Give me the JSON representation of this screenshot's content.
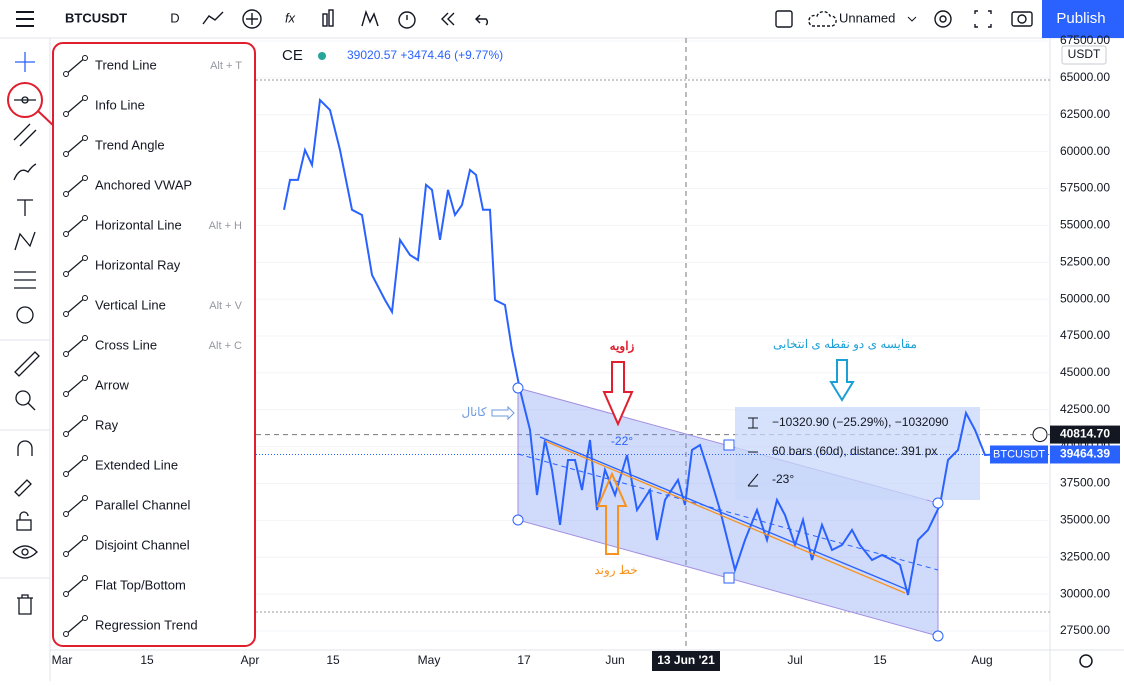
{
  "toolbar": {
    "symbol": "BTCUSDT",
    "interval": "D",
    "layout_name": "Unnamed",
    "publish": "Publish"
  },
  "drawing_menu": {
    "items": [
      {
        "label": "Trend Line",
        "shortcut": "Alt + T"
      },
      {
        "label": "Info Line"
      },
      {
        "label": "Trend Angle"
      },
      {
        "label": "Anchored VWAP"
      },
      {
        "label": "Horizontal Line",
        "shortcut": "Alt + H"
      },
      {
        "label": "Horizontal Ray"
      },
      {
        "label": "Vertical Line",
        "shortcut": "Alt + V"
      },
      {
        "label": "Cross Line",
        "shortcut": "Alt + C"
      },
      {
        "label": "Arrow"
      },
      {
        "label": "Ray"
      },
      {
        "label": "Extended Line"
      },
      {
        "label": "Parallel Channel"
      },
      {
        "label": "Disjoint Channel"
      },
      {
        "label": "Flat Top/Bottom"
      },
      {
        "label": "Regression Trend"
      }
    ]
  },
  "chart_data": {
    "type": "line",
    "symbol_label": "CE",
    "price_info": "39020.57 +3474.46 (+9.77%)",
    "currency": "USDT",
    "series": [
      {
        "name": "BTCUSDT",
        "color": "#2962ff",
        "values": [
          56050,
          58080,
          58080,
          60110,
          59100,
          63500,
          62820,
          60110,
          56050,
          55700,
          51640,
          49940,
          49130,
          54010,
          52990,
          52650,
          57740,
          57400,
          54010,
          57400,
          55700,
          56380,
          58760,
          58420,
          56050,
          56050,
          49940,
          49600,
          46550,
          43840,
          41130,
          36720,
          40450,
          38420,
          34690,
          39090,
          39090,
          37060,
          40450,
          35700,
          38420,
          36720,
          39430,
          35700,
          37060,
          33670,
          36380,
          37740,
          36040,
          39770,
          40110,
          38420,
          35700,
          31640,
          33670,
          35700,
          33670,
          36380,
          35360,
          33330,
          35030,
          32310,
          34690,
          32990,
          33330,
          34350,
          33330,
          32310,
          32650,
          32310,
          31980,
          29940,
          33670,
          34350,
          36040,
          39090,
          39770,
          42280,
          41130,
          39430,
          39464.39
        ]
      }
    ],
    "last_price": 39464.39,
    "crosshair_price": {
      "value": 40814.7,
      "label": "40814.70"
    },
    "crosshair_date": "13 Jun '21",
    "ylim": [
      26210,
      67700
    ],
    "yticks": [
      {
        "value": 27500,
        "label": "27500.00"
      },
      {
        "value": 30000,
        "label": "30000.00"
      },
      {
        "value": 32500,
        "label": "32500.00"
      },
      {
        "value": 35000,
        "label": "35000.00"
      },
      {
        "value": 37500,
        "label": "37500.00"
      },
      {
        "value": 40000,
        "label": "40000.00"
      },
      {
        "value": 42500,
        "label": "42500.00"
      },
      {
        "value": 45000,
        "label": "45000.00"
      },
      {
        "value": 47500,
        "label": "47500.00"
      },
      {
        "value": 50000,
        "label": "50000.00"
      },
      {
        "value": 52500,
        "label": "52500.00"
      },
      {
        "value": 55000,
        "label": "55000.00"
      },
      {
        "value": 57500,
        "label": "57500.00"
      },
      {
        "value": 60000,
        "label": "60000.00"
      },
      {
        "value": 62500,
        "label": "62500.00"
      },
      {
        "value": 65000,
        "label": "65000.00"
      },
      {
        "value": 67500,
        "label": "67500.00"
      }
    ],
    "x_labels": [
      "Mar",
      "15",
      "Apr",
      "15",
      "May",
      "17",
      "Jun",
      "Jul",
      "15",
      "Aug"
    ],
    "annotations": {
      "angle_label": "زاویه",
      "trend_label": "خط روند",
      "channel_label": "کانال",
      "compare_label": "مقایسه ی دو نقطه ی انتخابی",
      "trend_angle": "-22°",
      "measure": {
        "change": "−10320.90 (−25.29%), −1032090",
        "bars": "60 bars (60d), distance: 391 px",
        "angle": "-23°"
      }
    }
  }
}
